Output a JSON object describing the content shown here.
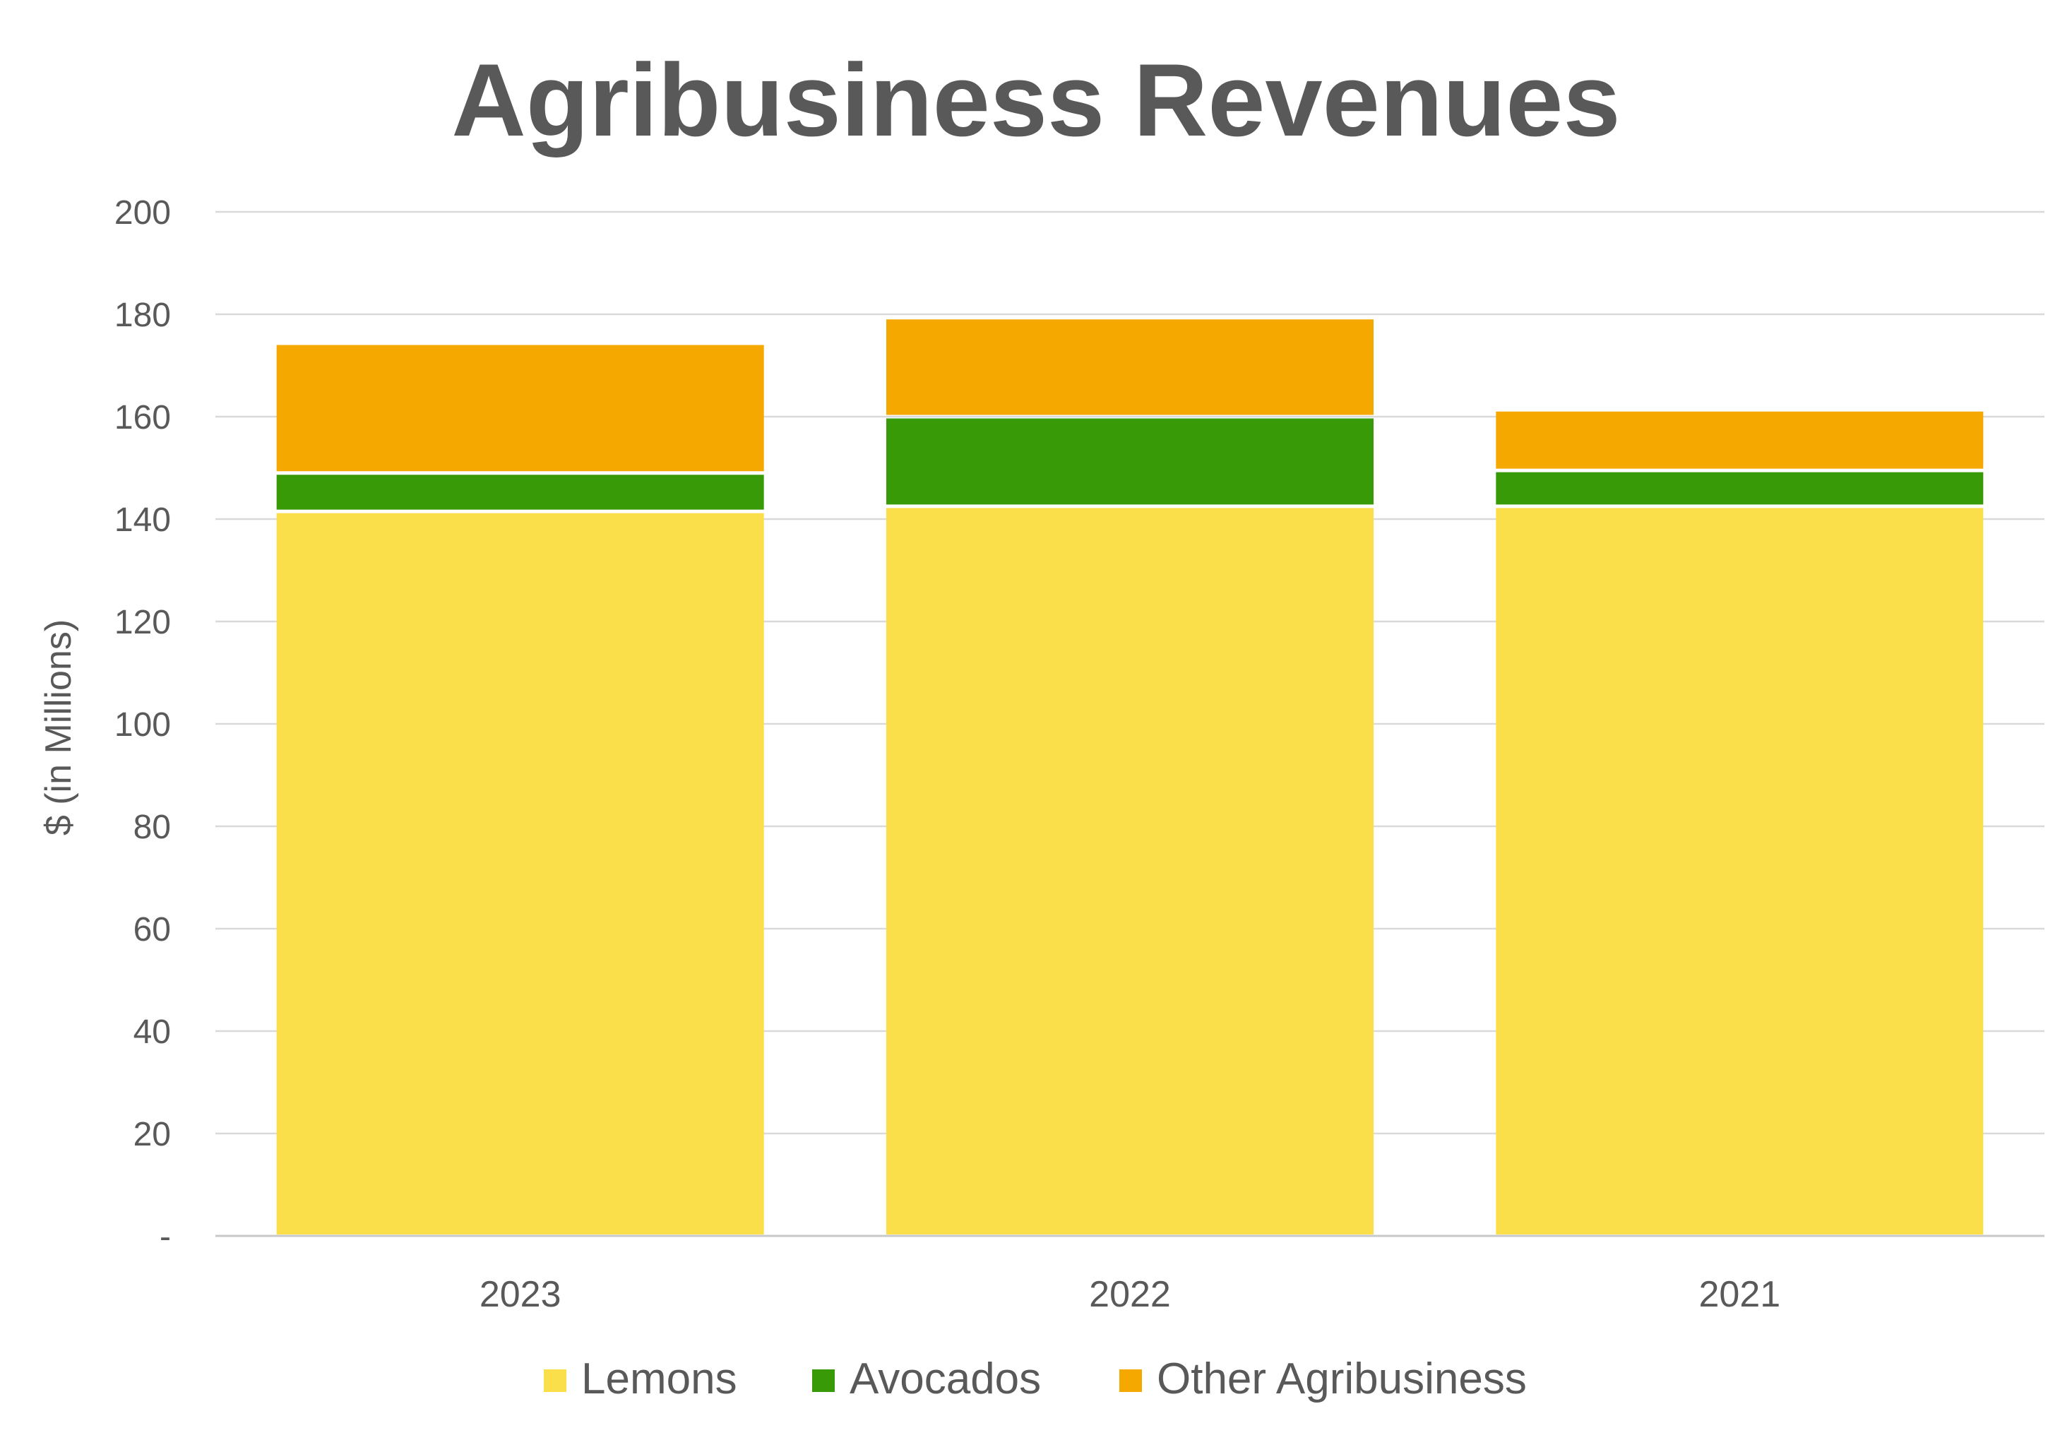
{
  "chart_data": {
    "type": "bar",
    "stacked": true,
    "title": "Agribusiness Revenues",
    "xlabel": "",
    "ylabel": "$ (in Millions)",
    "categories": [
      "2023",
      "2022",
      "2021"
    ],
    "ylim": [
      0,
      200
    ],
    "yticks": [
      0,
      20,
      40,
      60,
      80,
      100,
      120,
      140,
      160,
      180,
      200
    ],
    "ytick_labels": [
      "-",
      "20",
      "40",
      "60",
      "80",
      "100",
      "120",
      "140",
      "160",
      "180",
      "200"
    ],
    "grid": true,
    "legend_position": "bottom",
    "series": [
      {
        "name": "Lemons",
        "color": "#FADF4A",
        "values": [
          141.5,
          142.5,
          142.5
        ]
      },
      {
        "name": "Avocados",
        "color": "#379A06",
        "values": [
          7.5,
          17.5,
          7.0
        ]
      },
      {
        "name": "Other Agribusiness",
        "color": "#F5A800",
        "values": [
          25.0,
          19.0,
          11.5
        ]
      }
    ]
  }
}
